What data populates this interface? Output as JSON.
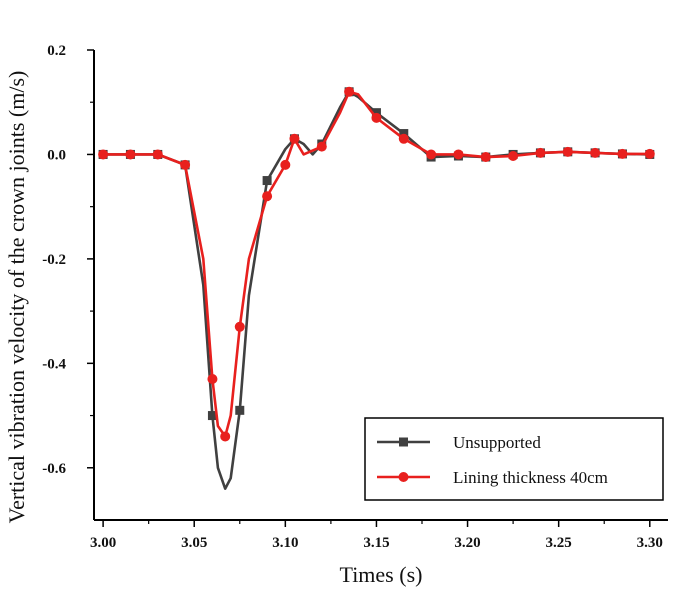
{
  "chart_data": {
    "type": "line",
    "xlabel": "Times (s)",
    "ylabel": "Vertical vibration velocity of the crown joints (m/s)",
    "xlim": [
      2.995,
      3.31
    ],
    "ylim": [
      -0.7,
      0.2
    ],
    "x_ticks": [
      3.0,
      3.05,
      3.1,
      3.15,
      3.2,
      3.25,
      3.3
    ],
    "x_tick_labels": [
      "3.00",
      "3.05",
      "3.10",
      "3.15",
      "3.20",
      "3.25",
      "3.30"
    ],
    "y_ticks": [
      -0.6,
      -0.4,
      -0.2,
      0.0,
      0.2
    ],
    "y_tick_labels": [
      "-0.6",
      "-0.4",
      "-0.2",
      "0.0",
      "0.2"
    ],
    "grid": false,
    "legend_position": "bottom-right",
    "series": [
      {
        "name": "Unsupported",
        "color": "#404040",
        "marker": "square",
        "x": [
          3.0,
          3.015,
          3.03,
          3.045,
          3.055,
          3.06,
          3.063,
          3.067,
          3.07,
          3.075,
          3.08,
          3.09,
          3.1,
          3.105,
          3.11,
          3.115,
          3.12,
          3.13,
          3.135,
          3.14,
          3.15,
          3.165,
          3.18,
          3.195,
          3.21,
          3.225,
          3.24,
          3.255,
          3.27,
          3.285,
          3.3
        ],
        "y": [
          0.0,
          0.0,
          0.0,
          -0.02,
          -0.25,
          -0.5,
          -0.6,
          -0.64,
          -0.62,
          -0.49,
          -0.27,
          -0.05,
          0.01,
          0.03,
          0.02,
          0.0,
          0.02,
          0.09,
          0.12,
          0.11,
          0.08,
          0.04,
          -0.005,
          -0.003,
          -0.005,
          0.0,
          0.003,
          0.005,
          0.003,
          0.001,
          0.0
        ],
        "marked_x": [
          3.0,
          3.015,
          3.03,
          3.045,
          3.06,
          3.075,
          3.09,
          3.105,
          3.12,
          3.135,
          3.15,
          3.165,
          3.18,
          3.195,
          3.21,
          3.225,
          3.24,
          3.255,
          3.27,
          3.285,
          3.3
        ],
        "marked_y": [
          0.0,
          0.0,
          0.0,
          -0.02,
          -0.5,
          -0.49,
          -0.05,
          0.03,
          0.02,
          0.12,
          0.08,
          0.04,
          -0.005,
          -0.003,
          -0.005,
          0.0,
          0.003,
          0.005,
          0.003,
          0.001,
          0.0
        ]
      },
      {
        "name": "Lining thickness 40cm",
        "color": "#e8201e",
        "marker": "circle",
        "x": [
          3.0,
          3.015,
          3.03,
          3.045,
          3.055,
          3.06,
          3.063,
          3.067,
          3.07,
          3.075,
          3.08,
          3.09,
          3.1,
          3.105,
          3.11,
          3.12,
          3.13,
          3.135,
          3.14,
          3.15,
          3.165,
          3.18,
          3.195,
          3.21,
          3.225,
          3.24,
          3.255,
          3.27,
          3.285,
          3.3
        ],
        "y": [
          0.0,
          0.0,
          0.0,
          -0.02,
          -0.2,
          -0.43,
          -0.52,
          -0.54,
          -0.5,
          -0.33,
          -0.2,
          -0.08,
          -0.02,
          0.03,
          0.0,
          0.015,
          0.08,
          0.12,
          0.115,
          0.07,
          0.03,
          0.0,
          0.0,
          -0.005,
          -0.003,
          0.003,
          0.005,
          0.003,
          0.001,
          0.001
        ],
        "marked_x": [
          3.0,
          3.015,
          3.03,
          3.045,
          3.06,
          3.067,
          3.075,
          3.09,
          3.1,
          3.105,
          3.12,
          3.135,
          3.15,
          3.165,
          3.18,
          3.195,
          3.21,
          3.225,
          3.24,
          3.255,
          3.27,
          3.285,
          3.3
        ],
        "marked_y": [
          0.0,
          0.0,
          0.0,
          -0.02,
          -0.43,
          -0.54,
          -0.33,
          -0.08,
          -0.02,
          0.03,
          0.015,
          0.12,
          0.07,
          0.03,
          0.0,
          0.0,
          -0.005,
          -0.003,
          0.003,
          0.005,
          0.003,
          0.001,
          0.001
        ]
      }
    ]
  }
}
